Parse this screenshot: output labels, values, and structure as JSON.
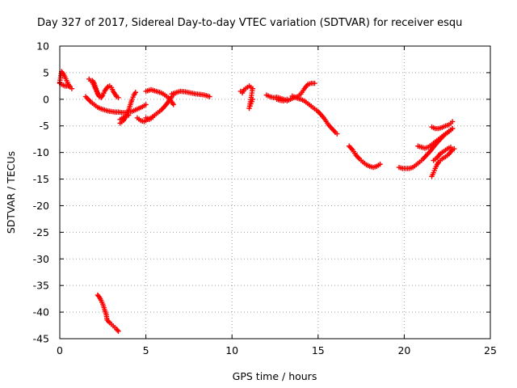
{
  "colors": {
    "series": "#ff0000",
    "grid": "#a0a0a0",
    "axis": "#000000"
  },
  "chart_data": {
    "type": "scatter",
    "title": "Day 327 of 2017, Sidereal Day-to-day VTEC variation (SDTVAR) for receiver esqu",
    "xlabel": "GPS time / hours",
    "ylabel": "SDTVAR / TECUs",
    "xlim": [
      0,
      25
    ],
    "ylim": [
      -45,
      10
    ],
    "xticks": [
      0,
      5,
      10,
      15,
      20,
      25
    ],
    "yticks": [
      10,
      5,
      0,
      -5,
      -10,
      -15,
      -20,
      -25,
      -30,
      -35,
      -40,
      -45
    ],
    "grid": true,
    "marker": "plus",
    "series": [
      {
        "name": "SDTVAR",
        "segments": [
          [
            [
              0.0,
              3.2
            ],
            [
              0.1,
              5.2
            ],
            [
              0.2,
              4.8
            ],
            [
              0.3,
              4.2
            ],
            [
              0.4,
              3.5
            ],
            [
              0.5,
              2.8
            ],
            [
              0.6,
              2.3
            ],
            [
              0.7,
              2.0
            ]
          ],
          [
            [
              0.0,
              3.0
            ],
            [
              0.1,
              2.8
            ],
            [
              0.3,
              2.5
            ],
            [
              0.5,
              2.5
            ]
          ],
          [
            [
              1.5,
              0.5
            ],
            [
              1.8,
              -0.5
            ],
            [
              2.0,
              -1.0
            ],
            [
              2.2,
              -1.5
            ],
            [
              2.4,
              -1.8
            ],
            [
              2.6,
              -2.0
            ],
            [
              2.8,
              -2.2
            ],
            [
              3.0,
              -2.3
            ],
            [
              3.2,
              -2.4
            ],
            [
              3.4,
              -2.4
            ],
            [
              3.6,
              -2.5
            ],
            [
              3.8,
              -2.5
            ],
            [
              4.0,
              -2.4
            ],
            [
              4.2,
              -2.3
            ],
            [
              4.4,
              -2.0
            ],
            [
              4.6,
              -1.7
            ],
            [
              4.8,
              -1.4
            ],
            [
              5.0,
              -1.0
            ]
          ],
          [
            [
              1.7,
              3.8
            ],
            [
              1.9,
              3.2
            ],
            [
              2.0,
              2.5
            ],
            [
              2.1,
              1.8
            ],
            [
              2.2,
              1.0
            ],
            [
              2.3,
              0.5
            ],
            [
              2.4,
              0.3
            ],
            [
              2.5,
              0.8
            ],
            [
              2.6,
              1.5
            ],
            [
              2.7,
              2.0
            ],
            [
              2.8,
              2.4
            ],
            [
              2.9,
              2.5
            ],
            [
              3.0,
              2.2
            ],
            [
              3.1,
              1.5
            ],
            [
              3.2,
              1.0
            ],
            [
              3.3,
              0.5
            ],
            [
              3.4,
              0.3
            ]
          ],
          [
            [
              1.9,
              3.5
            ],
            [
              2.0,
              3.0
            ],
            [
              2.1,
              2.0
            ],
            [
              2.2,
              1.2
            ],
            [
              2.3,
              0.6
            ]
          ],
          [
            [
              3.5,
              -4.5
            ],
            [
              3.7,
              -4.0
            ],
            [
              3.8,
              -3.5
            ],
            [
              3.9,
              -2.8
            ],
            [
              4.0,
              -2.0
            ],
            [
              4.1,
              -1.0
            ],
            [
              4.2,
              0.0
            ],
            [
              4.3,
              0.8
            ],
            [
              4.4,
              1.3
            ]
          ],
          [
            [
              3.5,
              -3.8
            ],
            [
              3.8,
              -3.2
            ],
            [
              4.0,
              -3.0
            ]
          ],
          [
            [
              4.5,
              -3.5
            ],
            [
              4.7,
              -4.0
            ],
            [
              4.9,
              -4.2
            ],
            [
              5.1,
              -3.8
            ],
            [
              5.3,
              -3.5
            ],
            [
              5.5,
              -3.0
            ],
            [
              5.7,
              -2.5
            ],
            [
              5.9,
              -2.0
            ],
            [
              6.1,
              -1.3
            ],
            [
              6.3,
              -0.5
            ],
            [
              6.4,
              0.0
            ],
            [
              6.5,
              0.5
            ],
            [
              6.6,
              0.8
            ]
          ],
          [
            [
              5.0,
              -3.5
            ],
            [
              5.2,
              -3.8
            ],
            [
              5.4,
              -3.4
            ]
          ],
          [
            [
              5.0,
              1.5
            ],
            [
              5.3,
              1.8
            ],
            [
              5.6,
              1.5
            ],
            [
              5.9,
              1.2
            ],
            [
              6.1,
              0.8
            ],
            [
              6.3,
              0.3
            ],
            [
              6.5,
              -0.5
            ],
            [
              6.6,
              -1.0
            ]
          ],
          [
            [
              6.5,
              1.0
            ],
            [
              6.8,
              1.3
            ],
            [
              7.0,
              1.5
            ],
            [
              7.3,
              1.4
            ],
            [
              7.6,
              1.2
            ],
            [
              7.9,
              1.0
            ],
            [
              8.2,
              0.9
            ],
            [
              8.4,
              0.8
            ],
            [
              8.6,
              0.6
            ],
            [
              8.7,
              0.5
            ]
          ],
          [
            [
              2.2,
              -36.8
            ],
            [
              2.3,
              -37.2
            ],
            [
              2.4,
              -37.8
            ],
            [
              2.5,
              -38.5
            ],
            [
              2.6,
              -39.5
            ],
            [
              2.7,
              -40.5
            ],
            [
              2.75,
              -41.5
            ],
            [
              2.9,
              -42.0
            ],
            [
              3.1,
              -42.6
            ],
            [
              3.3,
              -43.2
            ],
            [
              3.4,
              -43.6
            ]
          ],
          [
            [
              10.5,
              1.5
            ],
            [
              10.6,
              1.2
            ],
            [
              10.7,
              1.8
            ],
            [
              11.0,
              2.5
            ],
            [
              11.2,
              2.0
            ],
            [
              11.0,
              -1.7
            ],
            [
              11.2,
              0.0
            ]
          ],
          [
            [
              12.0,
              0.8
            ],
            [
              12.2,
              0.5
            ],
            [
              12.4,
              0.3
            ],
            [
              12.6,
              0.4
            ],
            [
              12.8,
              0.2
            ],
            [
              13.0,
              0.0
            ],
            [
              13.2,
              -0.3
            ],
            [
              13.4,
              0.0
            ],
            [
              13.6,
              0.3
            ],
            [
              13.8,
              0.5
            ],
            [
              14.0,
              1.0
            ],
            [
              14.2,
              2.0
            ],
            [
              14.4,
              2.8
            ],
            [
              14.6,
              3.0
            ],
            [
              14.8,
              3.0
            ]
          ],
          [
            [
              12.6,
              0.0
            ],
            [
              12.8,
              -0.2
            ],
            [
              13.0,
              -0.3
            ],
            [
              13.2,
              0.0
            ]
          ],
          [
            [
              13.5,
              0.6
            ],
            [
              13.8,
              0.2
            ],
            [
              14.0,
              0.0
            ],
            [
              14.2,
              -0.3
            ],
            [
              14.4,
              -0.8
            ],
            [
              14.6,
              -1.3
            ],
            [
              14.8,
              -1.8
            ],
            [
              15.0,
              -2.3
            ],
            [
              15.2,
              -3.0
            ],
            [
              15.4,
              -3.8
            ],
            [
              15.6,
              -4.8
            ],
            [
              15.8,
              -5.5
            ],
            [
              16.0,
              -6.2
            ],
            [
              16.1,
              -6.5
            ]
          ],
          [
            [
              16.8,
              -8.8
            ],
            [
              17.0,
              -9.5
            ],
            [
              17.2,
              -10.5
            ],
            [
              17.4,
              -11.2
            ],
            [
              17.6,
              -11.8
            ],
            [
              17.8,
              -12.3
            ],
            [
              18.0,
              -12.6
            ],
            [
              18.2,
              -12.8
            ],
            [
              18.4,
              -12.6
            ],
            [
              18.6,
              -12.2
            ]
          ],
          [
            [
              19.7,
              -12.8
            ],
            [
              19.9,
              -13.0
            ],
            [
              20.1,
              -13.0
            ],
            [
              20.3,
              -13.0
            ],
            [
              20.5,
              -12.8
            ],
            [
              20.7,
              -12.3
            ],
            [
              20.9,
              -11.8
            ],
            [
              21.1,
              -11.2
            ],
            [
              21.3,
              -10.5
            ],
            [
              21.5,
              -9.8
            ],
            [
              21.7,
              -9.0
            ],
            [
              21.9,
              -8.2
            ],
            [
              22.1,
              -7.5
            ],
            [
              22.3,
              -6.8
            ],
            [
              22.5,
              -6.3
            ],
            [
              22.7,
              -5.8
            ],
            [
              22.8,
              -5.5
            ]
          ],
          [
            [
              21.6,
              -14.5
            ],
            [
              21.7,
              -13.8
            ],
            [
              21.8,
              -13.0
            ],
            [
              21.9,
              -12.3
            ],
            [
              22.0,
              -11.8
            ],
            [
              22.2,
              -11.2
            ],
            [
              22.4,
              -10.8
            ],
            [
              22.6,
              -10.3
            ],
            [
              22.8,
              -9.5
            ],
            [
              22.9,
              -9.3
            ]
          ],
          [
            [
              21.6,
              -5.2
            ],
            [
              21.8,
              -5.5
            ],
            [
              22.0,
              -5.5
            ],
            [
              22.2,
              -5.3
            ],
            [
              22.4,
              -5.0
            ],
            [
              22.6,
              -4.8
            ],
            [
              22.8,
              -4.2
            ]
          ],
          [
            [
              20.8,
              -8.8
            ],
            [
              21.0,
              -9.0
            ],
            [
              21.2,
              -9.2
            ],
            [
              21.4,
              -9.0
            ],
            [
              21.6,
              -8.5
            ],
            [
              21.8,
              -8.0
            ],
            [
              22.0,
              -7.5
            ],
            [
              22.2,
              -7.0
            ],
            [
              22.4,
              -6.5
            ],
            [
              22.6,
              -6.0
            ],
            [
              22.8,
              -5.5
            ]
          ],
          [
            [
              21.7,
              -11.5
            ],
            [
              21.9,
              -11.0
            ],
            [
              22.1,
              -10.2
            ],
            [
              22.3,
              -9.8
            ],
            [
              22.5,
              -9.3
            ],
            [
              22.7,
              -9.0
            ]
          ]
        ]
      }
    ]
  }
}
